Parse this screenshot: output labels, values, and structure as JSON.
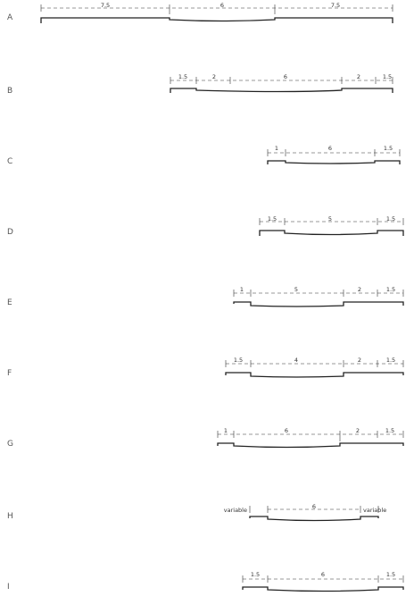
{
  "sections": [
    {
      "label": "A",
      "dimensions": [
        "7.5",
        "6",
        "7.5"
      ]
    },
    {
      "label": "B",
      "dimensions": [
        "1.5",
        "2",
        "6",
        "2",
        "1.5"
      ]
    },
    {
      "label": "C",
      "dimensions": [
        "1",
        "6",
        "1.5"
      ]
    },
    {
      "label": "D",
      "dimensions": [
        "1.5",
        "5",
        "1.5"
      ]
    },
    {
      "label": "E",
      "dimensions": [
        "1",
        "5",
        "2",
        "1.5"
      ]
    },
    {
      "label": "F",
      "dimensions": [
        "1.5",
        "4",
        "2",
        "1.5"
      ]
    },
    {
      "label": "G",
      "dimensions": [
        "1",
        "6",
        "2",
        "1.5"
      ]
    },
    {
      "label": "H",
      "dimensions": [
        "variable",
        "6",
        "variable"
      ]
    },
    {
      "label": "I",
      "dimensions": [
        "1.5",
        "6",
        "1.5"
      ]
    }
  ]
}
